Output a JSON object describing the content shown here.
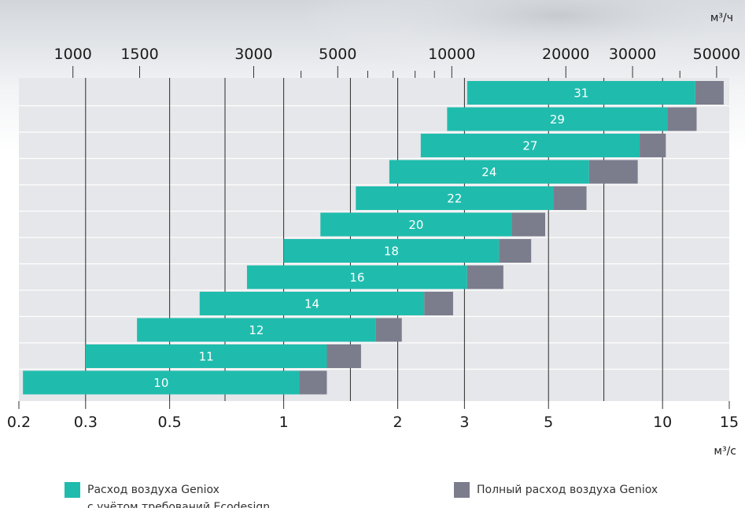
{
  "chart_data": {
    "type": "bar",
    "orientation": "horizontal",
    "scale": "log",
    "categories": [
      "31",
      "29",
      "27",
      "24",
      "22",
      "20",
      "18",
      "16",
      "14",
      "12",
      "11",
      "10"
    ],
    "series": [
      {
        "name": "Расход воздуха Geniox с учётом требований Ecodesign",
        "color": "#1fbcad",
        "ranges": [
          [
            3.05,
            12.2
          ],
          [
            2.7,
            10.3
          ],
          [
            2.3,
            8.7
          ],
          [
            1.9,
            6.4
          ],
          [
            1.55,
            5.15
          ],
          [
            1.25,
            4.0
          ],
          [
            1.0,
            3.7
          ],
          [
            0.8,
            3.05
          ],
          [
            0.6,
            2.35
          ],
          [
            0.41,
            1.75
          ],
          [
            0.3,
            1.3
          ],
          [
            0.205,
            1.1
          ]
        ]
      },
      {
        "name": "Полный расход воздуха Geniox",
        "color": "#7b7d8d",
        "ranges": [
          [
            12.2,
            14.5
          ],
          [
            10.3,
            12.3
          ],
          [
            8.7,
            10.2
          ],
          [
            6.4,
            8.6
          ],
          [
            5.15,
            6.3
          ],
          [
            4.0,
            4.9
          ],
          [
            3.7,
            4.5
          ],
          [
            3.05,
            3.8
          ],
          [
            2.35,
            2.8
          ],
          [
            1.75,
            2.05
          ],
          [
            1.3,
            1.6
          ],
          [
            1.1,
            1.3
          ]
        ]
      }
    ],
    "x_bottom": {
      "unit": "м³/с",
      "range": [
        0.2,
        15
      ],
      "tick_labels": [
        "0.2",
        "0.3",
        "0.5",
        "1",
        "2",
        "3",
        "5",
        "10",
        "15"
      ],
      "tick_values": [
        0.2,
        0.3,
        0.5,
        1,
        2,
        3,
        5,
        10,
        15
      ]
    },
    "x_top": {
      "unit": "м³/ч",
      "tick_labels": [
        "1000",
        "1500",
        "3000",
        "5000",
        "10000",
        "20000",
        "30000",
        "50000"
      ],
      "tick_values": [
        1000,
        1500,
        3000,
        5000,
        10000,
        20000,
        30000,
        50000
      ],
      "minor_ticks": [
        4000,
        6000,
        7000,
        8000,
        9000,
        40000
      ]
    },
    "vertical_gridlines": [
      0.3,
      0.5,
      0.7,
      1,
      1.5,
      2,
      3,
      5,
      7,
      10
    ],
    "legend_position": "bottom"
  },
  "colors": {
    "plot_background": "#e6e7ea",
    "gridline": "#2a2a2a",
    "row_divider": "#ffffff",
    "teal": "#1fbcad",
    "gray": "#7b7d8d"
  }
}
